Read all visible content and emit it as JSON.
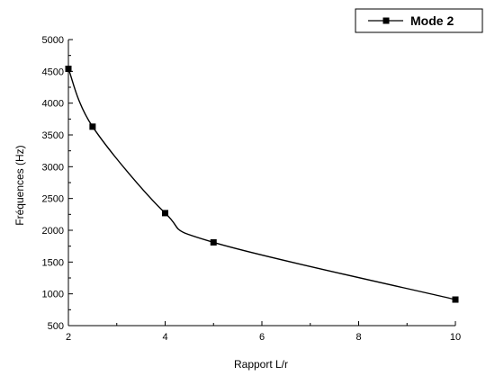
{
  "chart_data": {
    "type": "line",
    "xlabel": "Rapport L/r",
    "ylabel": "Fréquences (Hz)",
    "xlim": [
      2,
      10
    ],
    "ylim": [
      500,
      5000
    ],
    "x_ticks": [
      2,
      4,
      6,
      8,
      10
    ],
    "y_ticks": [
      500,
      1000,
      1500,
      2000,
      2500,
      3000,
      3500,
      4000,
      4500,
      5000
    ],
    "grid": false,
    "legend_position": "top-right",
    "series": [
      {
        "name": "Mode 2",
        "color": "#000000",
        "marker": "square",
        "line": "smooth",
        "x": [
          2,
          2.5,
          4,
          5,
          10
        ],
        "y": [
          4540,
          3630,
          2270,
          1810,
          910
        ]
      }
    ]
  },
  "legend": {
    "label": "Mode 2"
  },
  "axes": {
    "x_title": "Rapport L/r",
    "y_title": "Fréquences (Hz)"
  }
}
